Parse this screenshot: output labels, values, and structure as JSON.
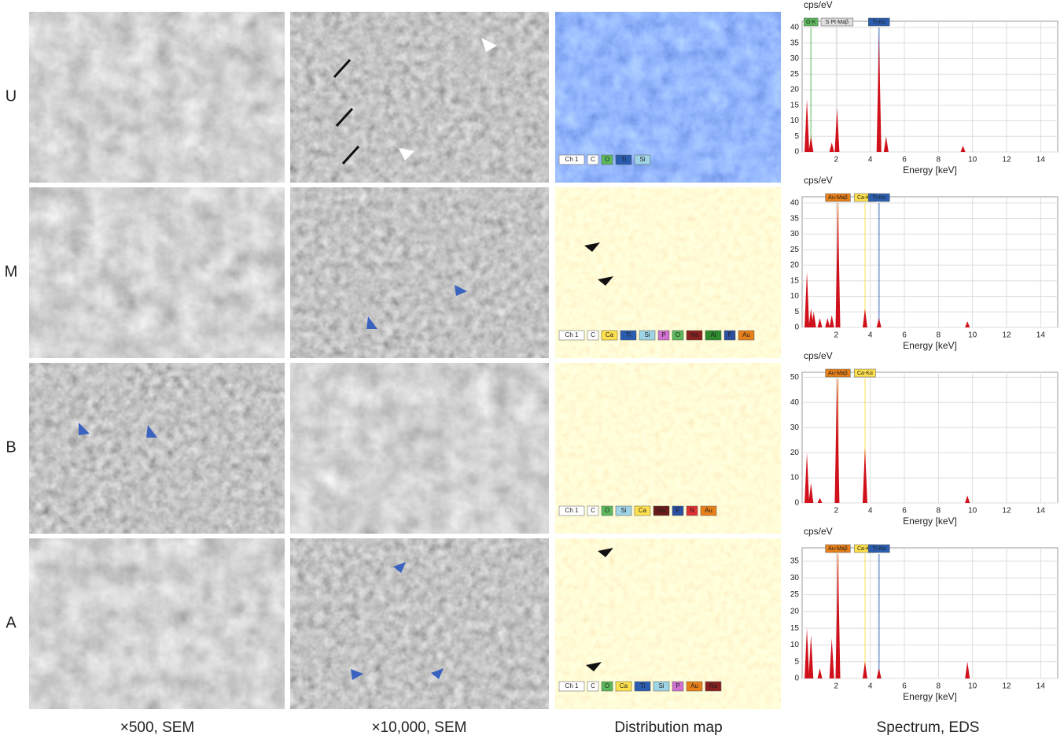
{
  "row_labels": [
    "U",
    "M",
    "B",
    "A"
  ],
  "column_captions": [
    "×500, SEM",
    "×10,000, SEM",
    "Distribution map",
    "Spectrum, EDS"
  ],
  "maps": [
    {
      "legend": [
        {
          "label": "Ch 1",
          "color": "#ffffff"
        },
        {
          "label": "C",
          "color": "#ffffff"
        },
        {
          "label": "O",
          "color": "#5cb85c"
        },
        {
          "label": "Ti",
          "color": "#2a5db0"
        },
        {
          "label": "Si",
          "color": "#9fd3e6"
        }
      ]
    },
    {
      "legend": [
        {
          "label": "Ch 1",
          "color": "#ffffff"
        },
        {
          "label": "C",
          "color": "#ffffff"
        },
        {
          "label": "Ca",
          "color": "#ffe14d"
        },
        {
          "label": "Ti",
          "color": "#2a5db0"
        },
        {
          "label": "Si",
          "color": "#9fd3e6"
        },
        {
          "label": "P",
          "color": "#d070d0"
        },
        {
          "label": "O",
          "color": "#5cb85c"
        },
        {
          "label": "Na",
          "color": "#8b2020"
        },
        {
          "label": "Al",
          "color": "#2e8b2e"
        },
        {
          "label": "F",
          "color": "#2a4fa0"
        },
        {
          "label": "Au",
          "color": "#e8801a"
        }
      ]
    },
    {
      "legend": [
        {
          "label": "Ch 1",
          "color": "#ffffff"
        },
        {
          "label": "C",
          "color": "#ffffff"
        },
        {
          "label": "O",
          "color": "#5cb85c"
        },
        {
          "label": "Si",
          "color": "#9fd3e6"
        },
        {
          "label": "Ca",
          "color": "#ffe14d"
        },
        {
          "label": "Na",
          "color": "#6b1a1a"
        },
        {
          "label": "F",
          "color": "#2a4fa0"
        },
        {
          "label": "N",
          "color": "#e03030"
        },
        {
          "label": "Au",
          "color": "#e8801a"
        }
      ]
    },
    {
      "legend": [
        {
          "label": "Ch 1",
          "color": "#ffffff"
        },
        {
          "label": "C",
          "color": "#ffffff"
        },
        {
          "label": "O",
          "color": "#5cb85c"
        },
        {
          "label": "Ca",
          "color": "#ffe14d"
        },
        {
          "label": "Ti",
          "color": "#2a5db0"
        },
        {
          "label": "Si",
          "color": "#9fd3e6"
        },
        {
          "label": "P",
          "color": "#d070d0"
        },
        {
          "label": "Au",
          "color": "#e8801a"
        },
        {
          "label": "Na",
          "color": "#8b2020"
        }
      ]
    }
  ],
  "chart_data": [
    {
      "type": "spectrum",
      "y_label": "cps/eV",
      "x_label": "Energy [keV]",
      "color": "#d0101a",
      "grid": true,
      "xlim": [
        0,
        15
      ],
      "xticks": [
        2,
        4,
        6,
        8,
        10,
        12,
        14
      ],
      "ylim": [
        0,
        42
      ],
      "yticks": [
        0,
        5,
        10,
        15,
        20,
        25,
        30,
        35,
        40
      ],
      "x": [
        0.28,
        0.52,
        1.74,
        2.05,
        4.51,
        4.93,
        9.44
      ],
      "values": [
        17,
        5,
        3,
        14,
        38,
        5,
        2
      ],
      "peak_labels": [
        {
          "text": "O-K",
          "x": 0.52,
          "color": "#5cb85c"
        },
        {
          "text": "S Pt-Maβ",
          "x": 2.05,
          "color": "#dddddd"
        },
        {
          "text": "Ti-Kα",
          "x": 4.51,
          "color": "#2a5db0"
        }
      ]
    },
    {
      "type": "spectrum",
      "y_label": "cps/eV",
      "x_label": "Energy [keV]",
      "color": "#d0101a",
      "grid": true,
      "xlim": [
        0,
        15
      ],
      "xticks": [
        2,
        4,
        6,
        8,
        10,
        12,
        14
      ],
      "ylim": [
        0,
        42
      ],
      "yticks": [
        0,
        5,
        10,
        15,
        20,
        25,
        30,
        35,
        40
      ],
      "x": [
        0.28,
        0.52,
        0.68,
        1.04,
        1.49,
        1.74,
        2.1,
        3.69,
        4.51,
        9.7
      ],
      "values": [
        18,
        6,
        5,
        3,
        3,
        4,
        40,
        6,
        3,
        2
      ],
      "peak_labels": [
        {
          "text": "Au-Maβ",
          "x": 2.1,
          "color": "#e8801a"
        },
        {
          "text": "Ca-Kα",
          "x": 3.69,
          "color": "#ffe14d"
        },
        {
          "text": "Ti-Kα",
          "x": 4.51,
          "color": "#2a5db0"
        }
      ]
    },
    {
      "type": "spectrum",
      "y_label": "cps/eV",
      "x_label": "Energy [keV]",
      "color": "#d0101a",
      "grid": true,
      "xlim": [
        0,
        15
      ],
      "xticks": [
        2,
        4,
        6,
        8,
        10,
        12,
        14
      ],
      "ylim": [
        0,
        52
      ],
      "yticks": [
        0,
        10,
        20,
        30,
        40,
        50
      ],
      "x": [
        0.28,
        0.52,
        1.04,
        2.05,
        3.69,
        9.7
      ],
      "values": [
        20,
        8,
        2,
        50,
        22,
        3
      ],
      "peak_labels": [
        {
          "text": "Au-Maβ",
          "x": 2.1,
          "color": "#e8801a"
        },
        {
          "text": "Ca-Kα",
          "x": 3.69,
          "color": "#ffe14d"
        }
      ]
    },
    {
      "type": "spectrum",
      "y_label": "cps/eV",
      "x_label": "Energy [keV]",
      "color": "#d0101a",
      "grid": true,
      "xlim": [
        0,
        15
      ],
      "xticks": [
        2,
        4,
        6,
        8,
        10,
        12,
        14
      ],
      "ylim": [
        0,
        39
      ],
      "yticks": [
        0,
        5,
        10,
        15,
        20,
        25,
        30,
        35
      ],
      "x": [
        0.28,
        0.52,
        1.04,
        1.74,
        2.1,
        3.69,
        4.51,
        9.7
      ],
      "values": [
        15,
        13,
        3,
        12,
        38,
        5,
        3,
        5
      ],
      "peak_labels": [
        {
          "text": "Au-Maβ",
          "x": 2.1,
          "color": "#e8801a"
        },
        {
          "text": "Ca-Kα",
          "x": 3.69,
          "color": "#ffe14d"
        },
        {
          "text": "Ti-Kα",
          "x": 4.51,
          "color": "#2a5db0"
        }
      ]
    }
  ]
}
